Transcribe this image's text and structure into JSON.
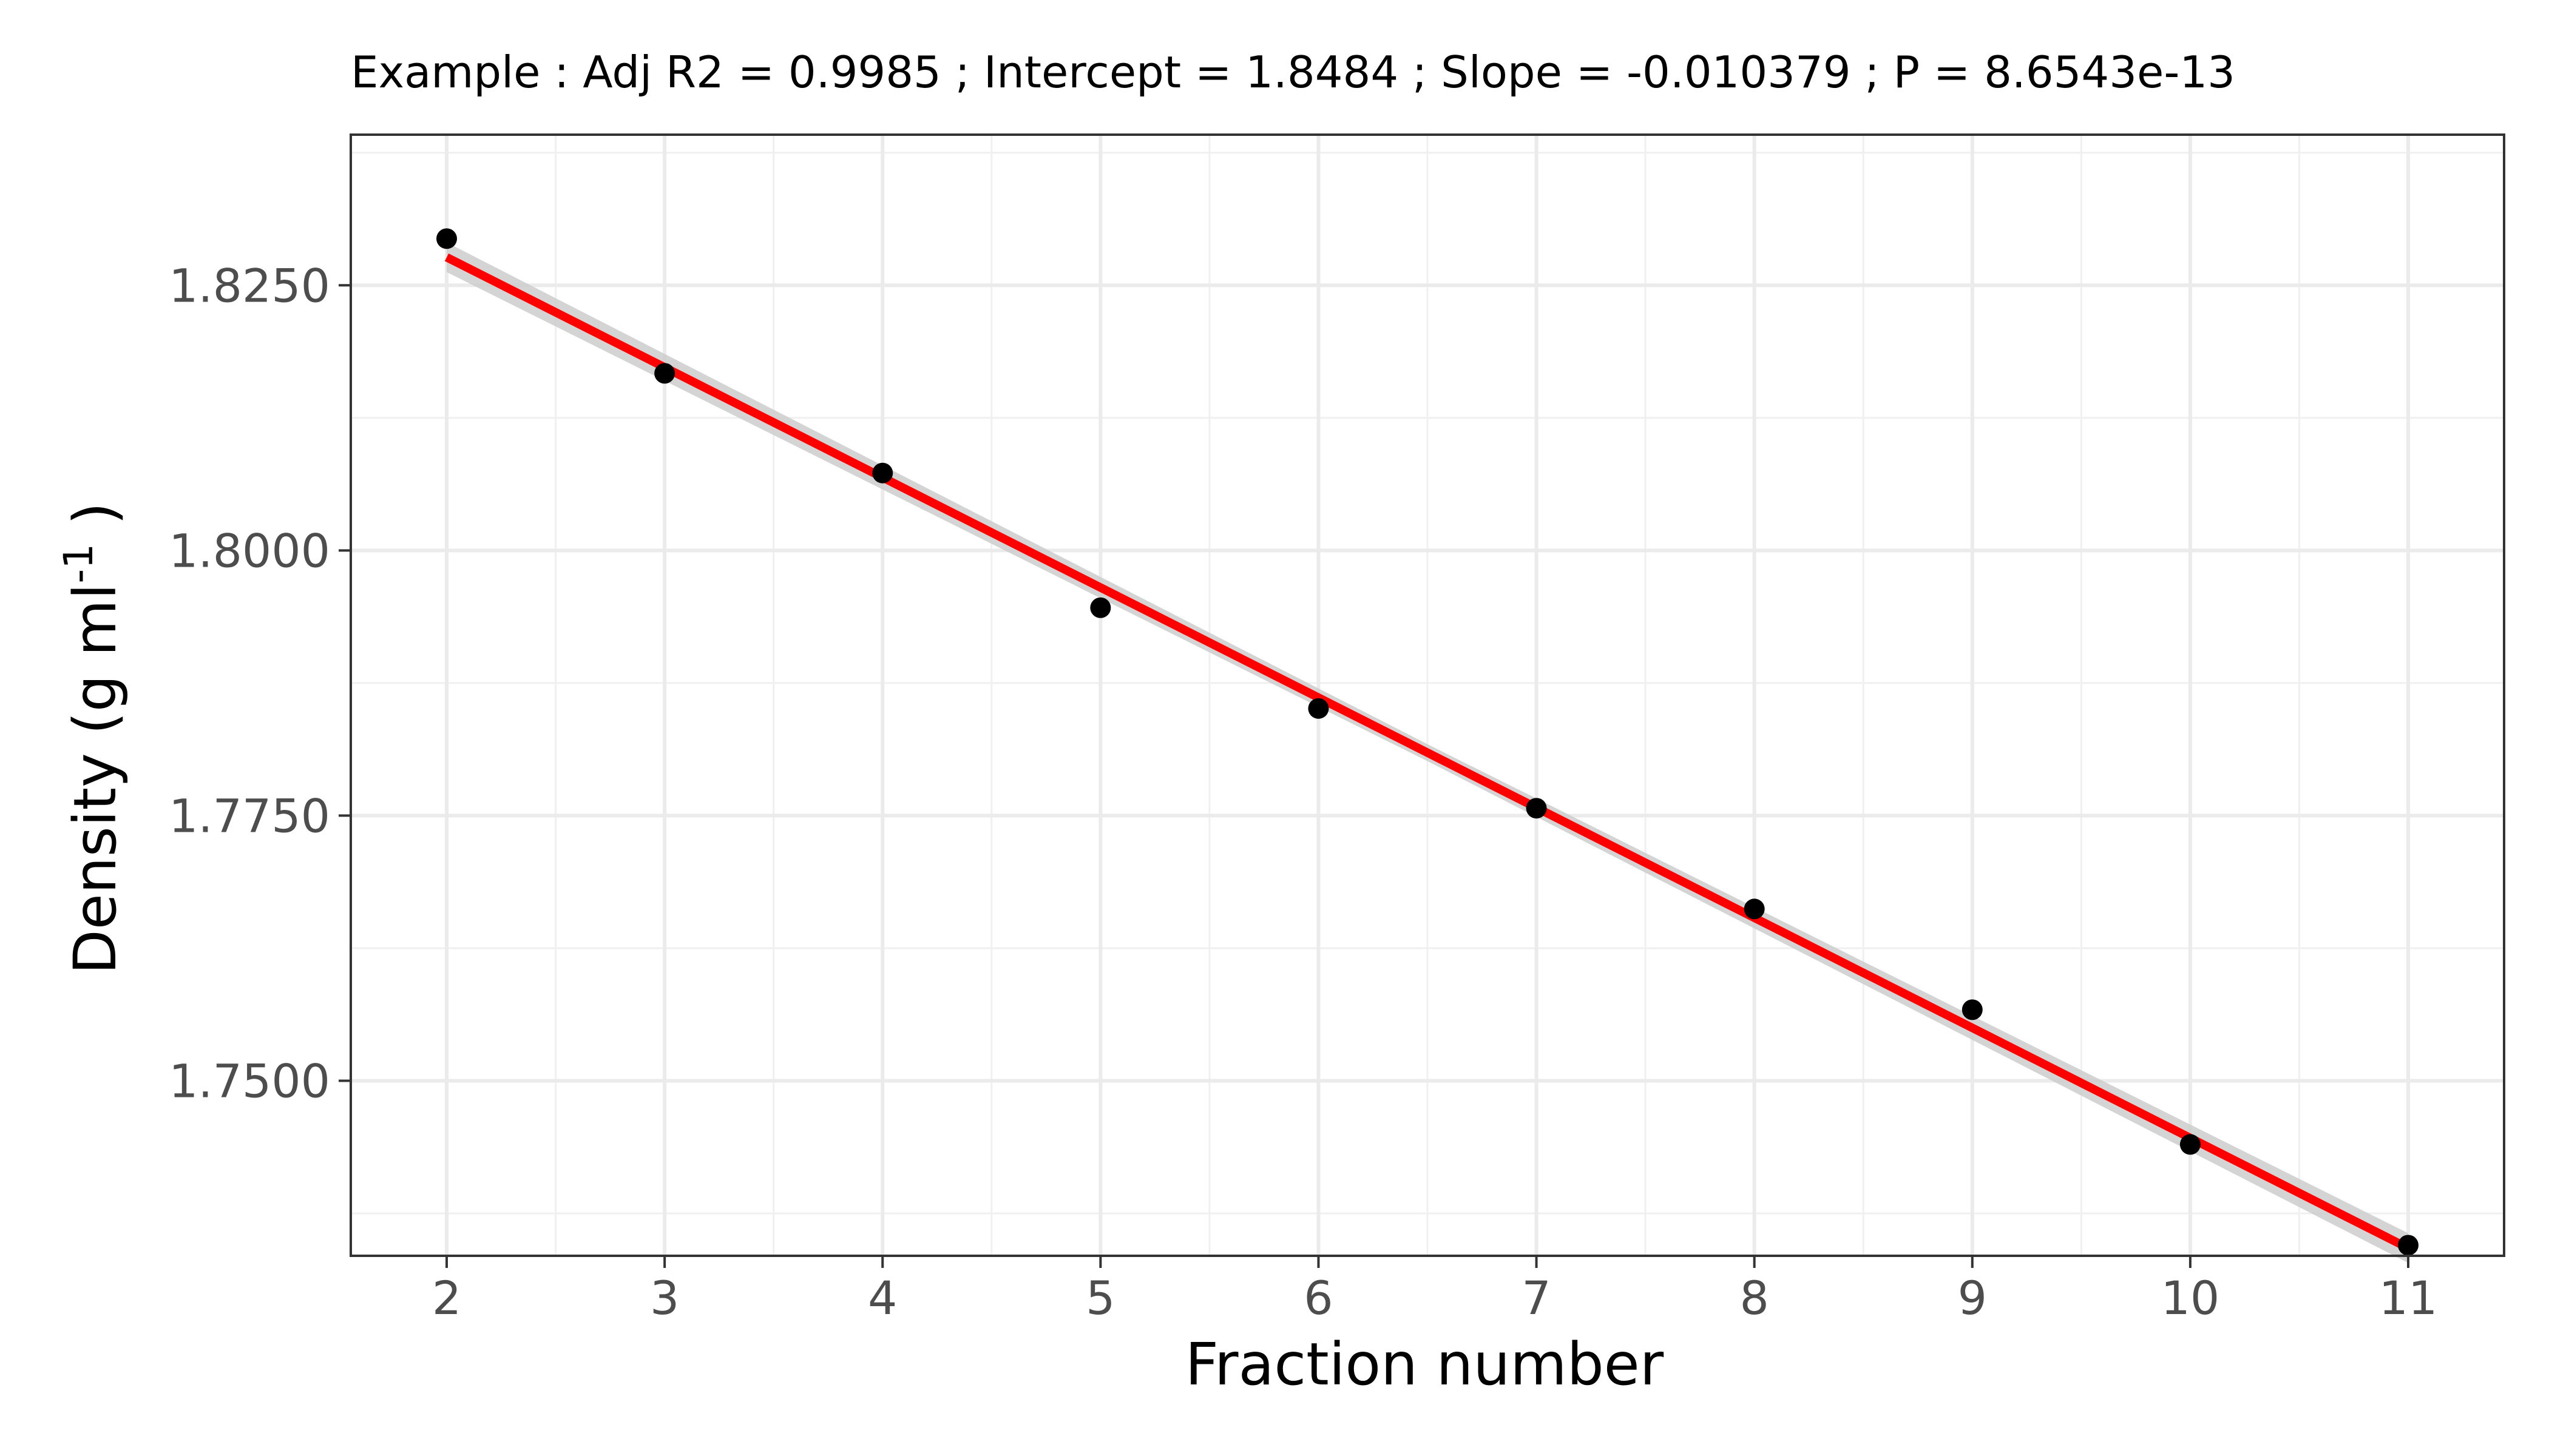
{
  "chart_data": {
    "type": "scatter",
    "title": "Example : Adj R2 =  0.9985 ; Intercept = 1.8484 ; Slope = -0.010379 ; P = 8.6543e-13",
    "xlabel": "Fraction number",
    "ylabel_main": "Density (g ml",
    "ylabel_sup": "-1",
    "ylabel_end": " )",
    "xlim": [
      1.56,
      11.44
    ],
    "ylim": [
      1.7335,
      1.8392
    ],
    "x_ticks": [
      2,
      3,
      4,
      5,
      6,
      7,
      8,
      9,
      10,
      11
    ],
    "x_tick_labels": [
      "2",
      "3",
      "4",
      "5",
      "6",
      "7",
      "8",
      "9",
      "10",
      "11"
    ],
    "y_ticks": [
      1.75,
      1.775,
      1.8,
      1.825
    ],
    "y_tick_labels": [
      "1.7500",
      "1.7750",
      "1.8000",
      "1.8250"
    ],
    "grid": true,
    "series": [
      {
        "type": "scatter",
        "x": [
          2,
          3,
          4,
          5,
          6,
          7,
          8,
          9,
          10,
          11
        ],
        "y": [
          1.8294,
          1.8167,
          1.8073,
          1.7946,
          1.7851,
          1.7757,
          1.7662,
          1.7567,
          1.744,
          1.7345
        ],
        "color": "#000000"
      },
      {
        "type": "fit",
        "intercept": 1.8484,
        "slope": -0.010379,
        "x_range": [
          2,
          11
        ],
        "color": "#ff0000",
        "band_color": "#cccccc",
        "band_halfwidth": [
          0.0014,
          0.0008,
          0.0014
        ]
      }
    ]
  }
}
